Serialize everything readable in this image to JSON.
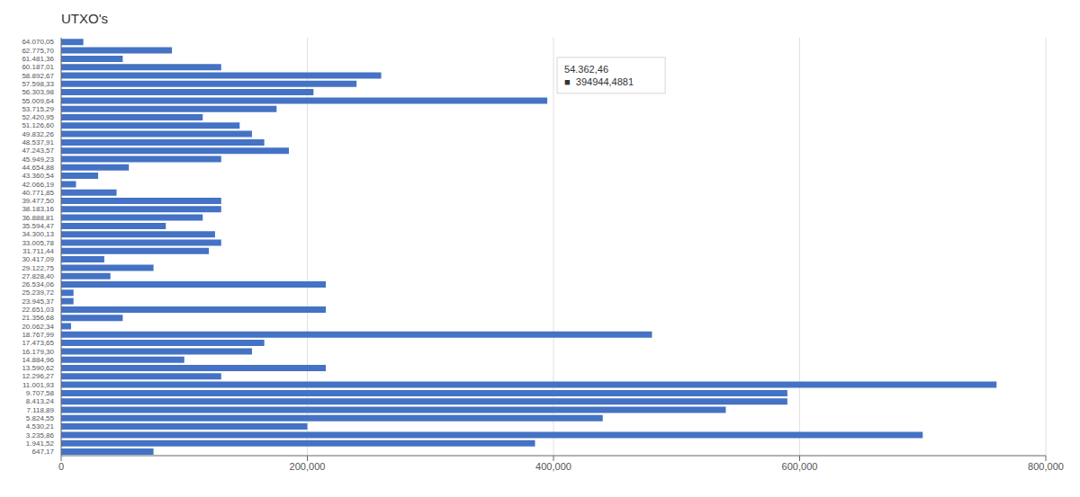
{
  "chart_data": {
    "type": "bar",
    "orientation": "horizontal",
    "title": "UTXO's",
    "categories": [
      "64.070,05",
      "62.775,70",
      "61.481,36",
      "60.187,01",
      "58.892,67",
      "57.598,33",
      "56.303,98",
      "55.009,64",
      "53.715,29",
      "52.420,95",
      "51.126,60",
      "49.832,26",
      "48.537,91",
      "47.243,57",
      "45.949,23",
      "44.654,88",
      "43.360,54",
      "42.066,19",
      "40.771,85",
      "39.477,50",
      "38.183,16",
      "36.888,81",
      "35.594,47",
      "34.300,13",
      "33.005,78",
      "31.711,44",
      "30.417,09",
      "29.122,75",
      "27.828,40",
      "26.534,06",
      "25.239,72",
      "23.945,37",
      "22.651,03",
      "21.356,68",
      "20.062,34",
      "18.767,99",
      "17.473,65",
      "16.179,30",
      "14.884,96",
      "13.590,62",
      "12.296,27",
      "11.001,93",
      "9.707,58",
      "8.413,24",
      "7.118,89",
      "5.824,55",
      "4.530,21",
      "3.235,86",
      "1.941,52",
      "647,17"
    ],
    "values": [
      18000,
      90000,
      50000,
      130000,
      260000,
      240000,
      205000,
      394944,
      175000,
      115000,
      145000,
      155000,
      165000,
      185000,
      130000,
      55000,
      30000,
      12000,
      45000,
      130000,
      130000,
      115000,
      85000,
      125000,
      130000,
      120000,
      35000,
      75000,
      40000,
      215000,
      10000,
      10000,
      215000,
      50000,
      8000,
      480000,
      165000,
      155000,
      100000,
      215000,
      130000,
      760000,
      590000,
      590000,
      540000,
      440000,
      200000,
      700000,
      385000,
      75000
    ],
    "color": "#4472C4",
    "xlim": [
      0,
      800000
    ],
    "xticks": [
      0,
      {
        "value": 200000,
        "label": "200,000"
      },
      {
        "value": 400000,
        "label": "400,000"
      },
      {
        "value": 600000,
        "label": "600,000"
      },
      {
        "value": 800000,
        "label": "800,000"
      }
    ],
    "grid": true,
    "annotations": [
      {
        "text": "54.362,46\n■  394944,4881",
        "x": 394944,
        "y": "55.009,64"
      }
    ]
  }
}
